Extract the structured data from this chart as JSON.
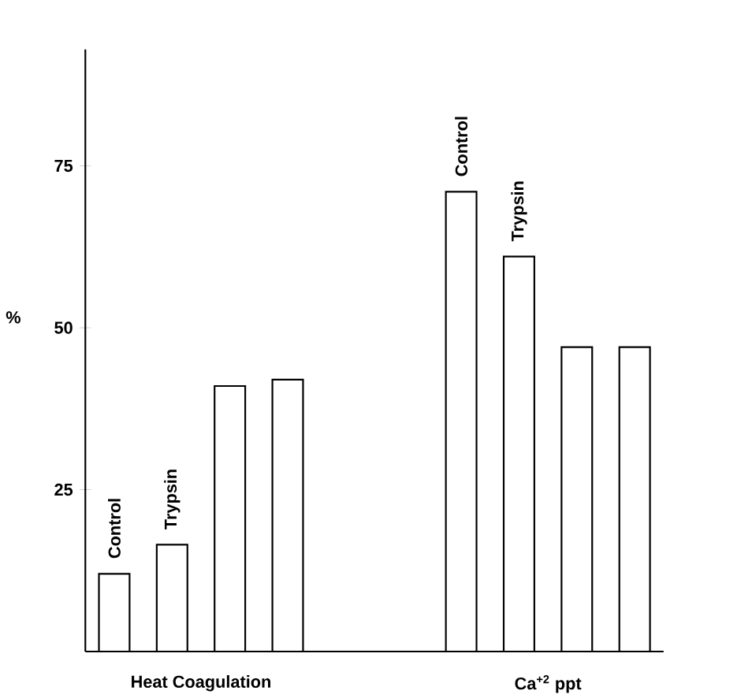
{
  "chart_data": {
    "type": "bar",
    "categories": [
      "Control",
      "Trypsin",
      null,
      null,
      null,
      null,
      "Control",
      "Trypsin",
      null,
      null
    ],
    "values": [
      12,
      16.5,
      41,
      42,
      null,
      null,
      71,
      61,
      47,
      47
    ],
    "color": "#ffffff",
    "ylabel": "%",
    "ylim": [
      0,
      93
    ],
    "yticks": [
      25,
      50,
      75
    ],
    "annotations": [
      "Heat Coagulation",
      "Ca$^{+2}$ ppt"
    ],
    "grid": false
  }
}
